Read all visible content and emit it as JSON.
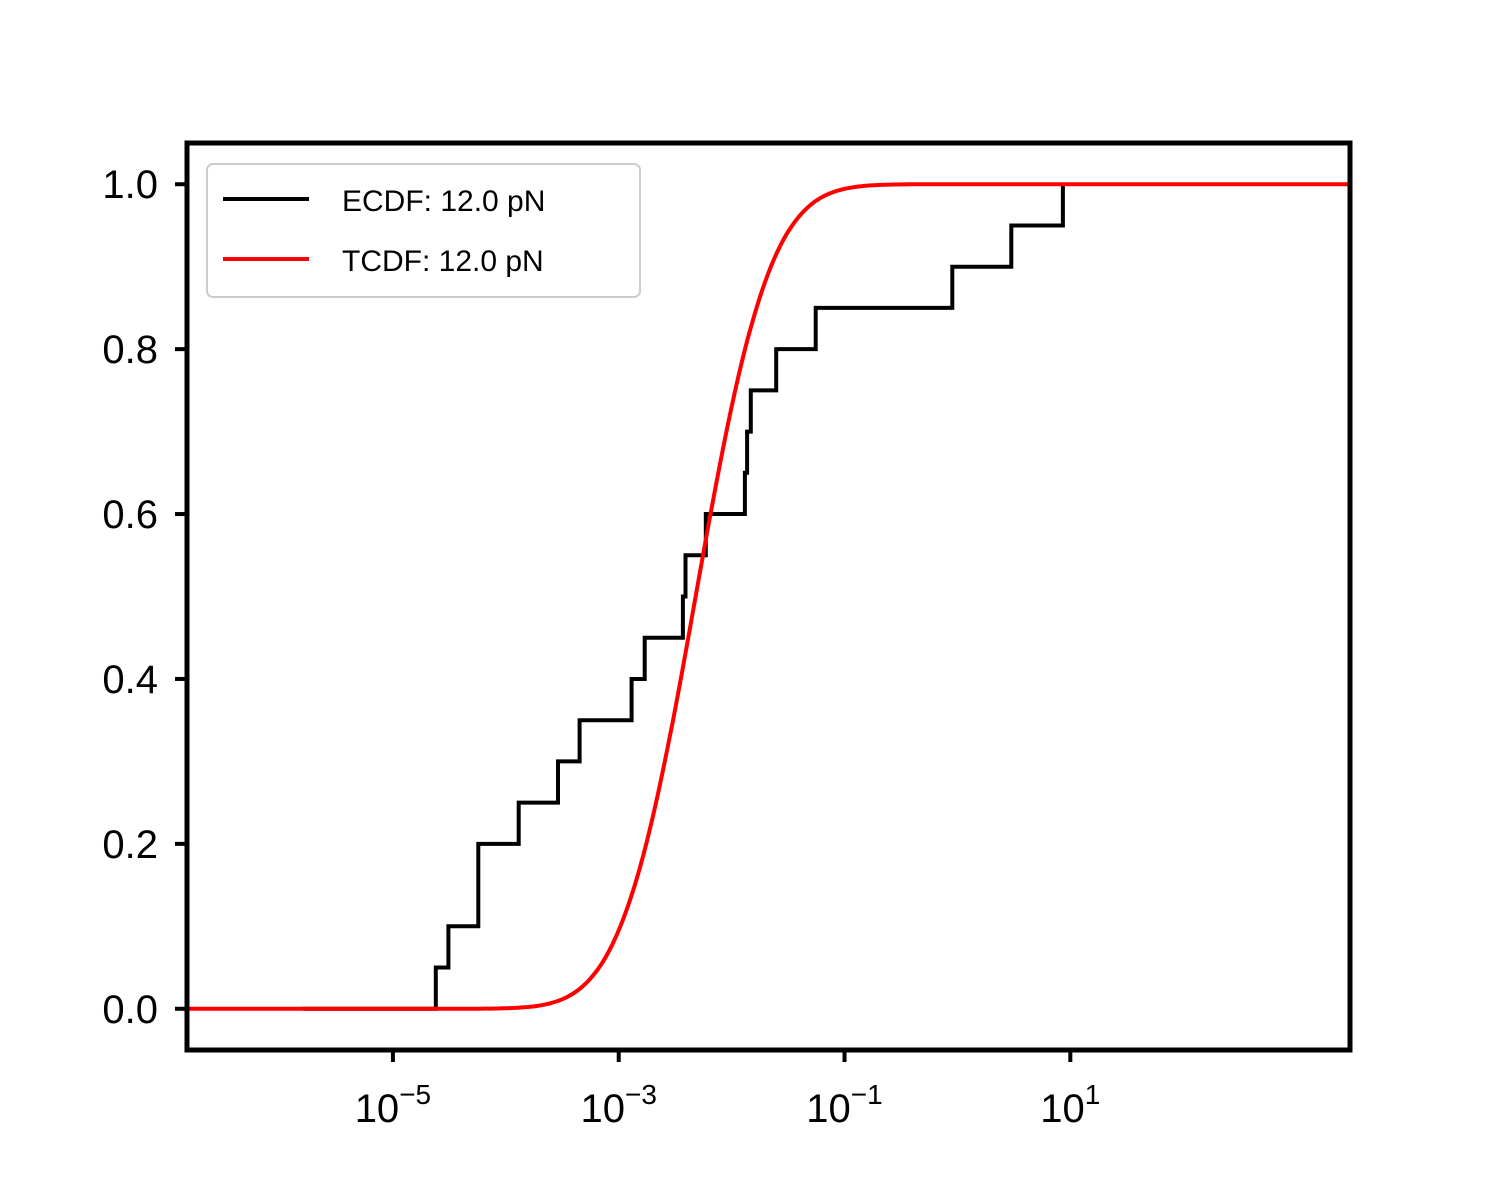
{
  "chart_data": {
    "type": "line",
    "x_scale": "log",
    "xlim": [
      1.5e-07,
      3000
    ],
    "ylim": [
      -0.05,
      1.05
    ],
    "grid": false,
    "legend_position": "top-left",
    "x_ticks": [
      {
        "value": 1e-05,
        "base": "10",
        "exp": "−5"
      },
      {
        "value": 0.001,
        "base": "10",
        "exp": "−3"
      },
      {
        "value": 0.1,
        "base": "10",
        "exp": "−1"
      },
      {
        "value": 10,
        "base": "10",
        "exp": "1"
      }
    ],
    "y_ticks": [
      {
        "value": 0.0,
        "label": "0.0"
      },
      {
        "value": 0.2,
        "label": "0.2"
      },
      {
        "value": 0.4,
        "label": "0.4"
      },
      {
        "value": 0.6,
        "label": "0.6"
      },
      {
        "value": 0.8,
        "label": "0.8"
      },
      {
        "value": 1.0,
        "label": "1.0"
      }
    ],
    "series": [
      {
        "name": "ECDF: 12.0 pN",
        "color": "#000000",
        "kind": "step",
        "x": [
          1.6e-06,
          2.4e-05,
          3.1e-05,
          5.7e-05,
          0.00013,
          0.00029,
          0.00045,
          0.0013,
          0.0017,
          0.0037,
          0.0039,
          0.0059,
          0.0131,
          0.0137,
          0.0148,
          0.0248,
          0.0556,
          0.9,
          3.0,
          8.6
        ],
        "y": [
          0.0,
          0.05,
          0.1,
          0.2,
          0.25,
          0.3,
          0.35,
          0.4,
          0.45,
          0.5,
          0.55,
          0.6,
          0.65,
          0.7,
          0.75,
          0.8,
          0.85,
          0.9,
          0.95,
          1.0
        ]
      },
      {
        "name": "TCDF: 12.0 pN",
        "color": "#ff0000",
        "kind": "lognormal-cdf",
        "median": 0.0048,
        "log10_sigma": 0.52
      }
    ]
  }
}
